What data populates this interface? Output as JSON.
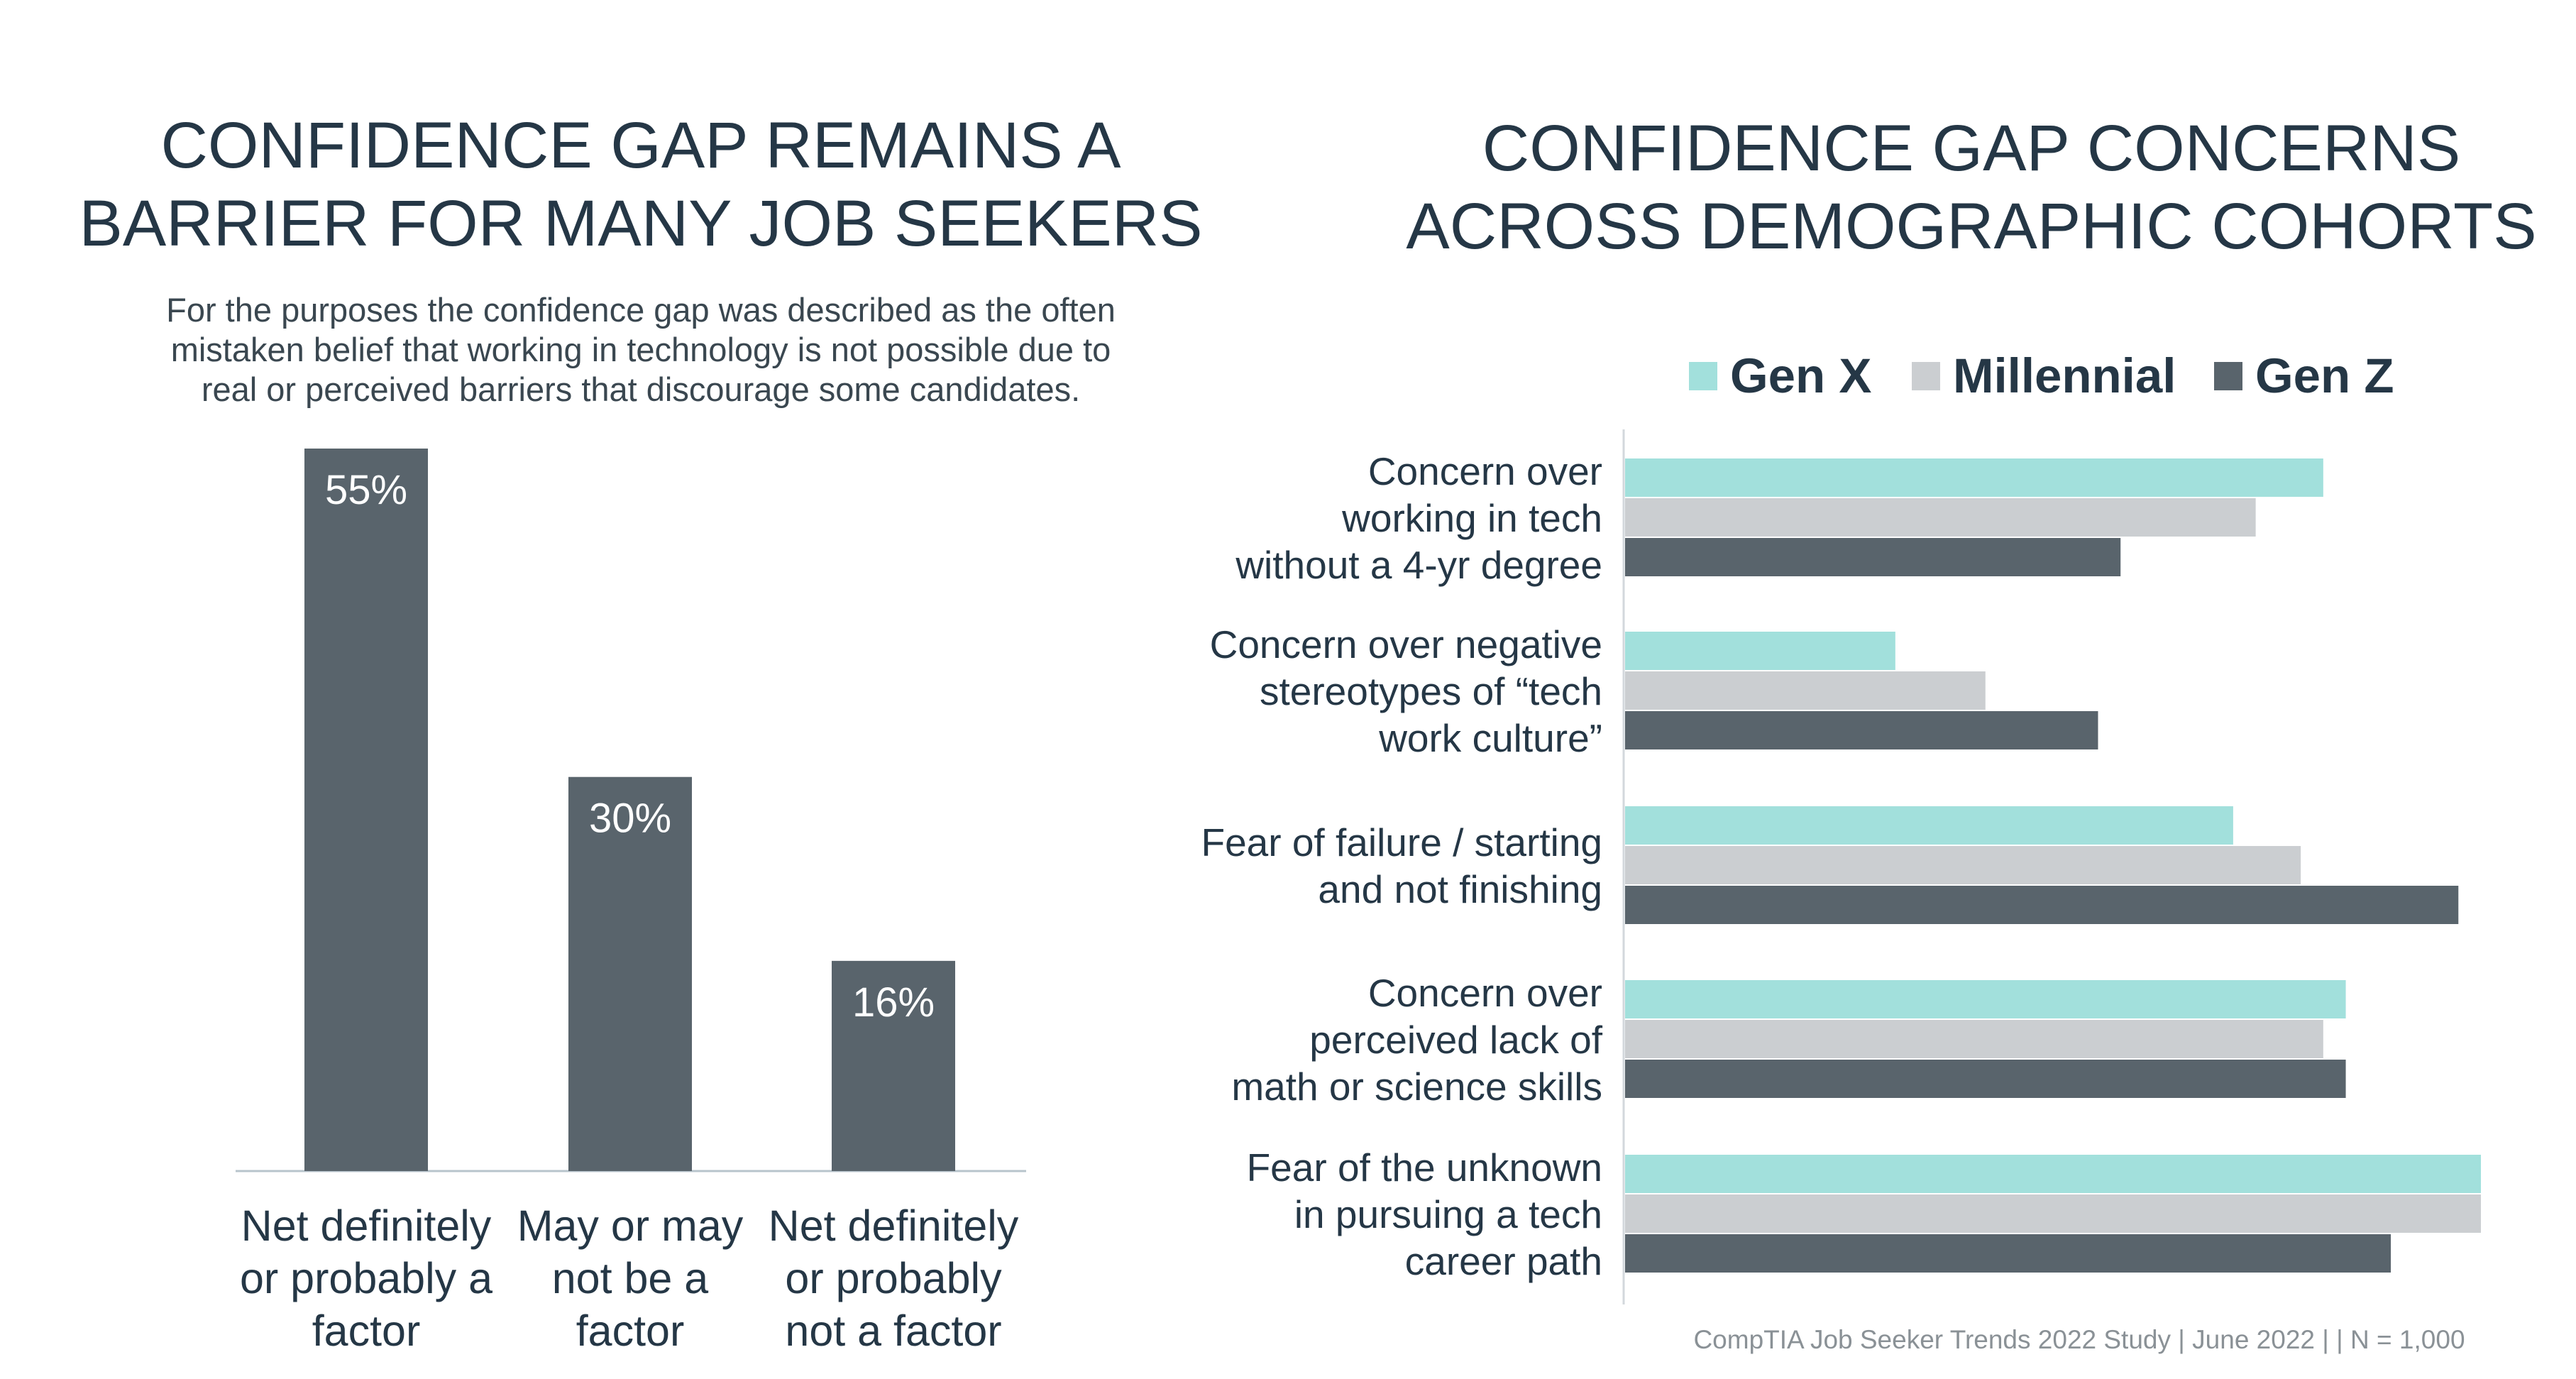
{
  "colors": {
    "dark": "#59646c",
    "teal": "#a2e0dc",
    "gray": "#cbced1",
    "title": "#253746"
  },
  "left_chart": {
    "title_lines": [
      "CONFIDENCE GAP REMAINS A",
      "BARRIER FOR MANY JOB SEEKERS"
    ],
    "subtitle_lines": [
      "For the purposes the confidence gap was described as the often",
      "mistaken belief that working in technology is not possible due to",
      "real or perceived barriers that discourage some candidates."
    ]
  },
  "right_chart": {
    "title_lines": [
      "CONFIDENCE GAP CONCERNS",
      "ACROSS DEMOGRAPHIC COHORTS"
    ]
  },
  "footer": "CompTIA Job Seeker Trends 2022 Study | June 2022 | | N = 1,000",
  "chart_data": [
    {
      "type": "bar",
      "title": "CONFIDENCE GAP REMAINS A BARRIER FOR MANY JOB SEEKERS",
      "categories": [
        "Net definitely or probably a factor",
        "May or may not be a factor",
        "Net definitely or probably not a factor"
      ],
      "category_lines": [
        [
          "Net definitely",
          "or probably a",
          "factor"
        ],
        [
          "May or may",
          "not be a",
          "factor"
        ],
        [
          "Net definitely",
          "or probably",
          "not a factor"
        ]
      ],
      "values": [
        55,
        30,
        16
      ],
      "data_labels": [
        "55%",
        "30%",
        "16%"
      ],
      "ylim": [
        0,
        55
      ],
      "grid": false,
      "color": "#59646c"
    },
    {
      "type": "bar",
      "orientation": "horizontal",
      "title": "CONFIDENCE GAP CONCERNS ACROSS DEMOGRAPHIC COHORTS",
      "categories": [
        "Concern over working in tech without a 4-yr degree",
        "Concern over negative stereotypes of “tech work culture”",
        "Fear of failure / starting and not finishing",
        "Concern over perceived lack of math or science skills",
        "Fear of the unknown in pursuing a tech career path"
      ],
      "category_lines": [
        [
          "Concern over",
          "working in tech",
          "without a 4-yr degree"
        ],
        [
          "Concern over negative",
          "stereotypes of “tech",
          "work culture”"
        ],
        [
          "Fear of failure / starting",
          "and not finishing"
        ],
        [
          "Concern over",
          "perceived lack of",
          "math or science skills"
        ],
        [
          "Fear of the unknown",
          "in pursuing a tech",
          "career path"
        ]
      ],
      "series": [
        {
          "name": "Gen X",
          "color": "#a2e0dc",
          "values": [
            31,
            12,
            27,
            32,
            38
          ]
        },
        {
          "name": "Millennial",
          "color": "#cbced1",
          "values": [
            28,
            16,
            30,
            31,
            38
          ]
        },
        {
          "name": "Gen Z",
          "color": "#59646c",
          "values": [
            22,
            21,
            37,
            32,
            34
          ]
        }
      ],
      "xlim": [
        0,
        38
      ],
      "legend": "top",
      "grid": false
    }
  ]
}
